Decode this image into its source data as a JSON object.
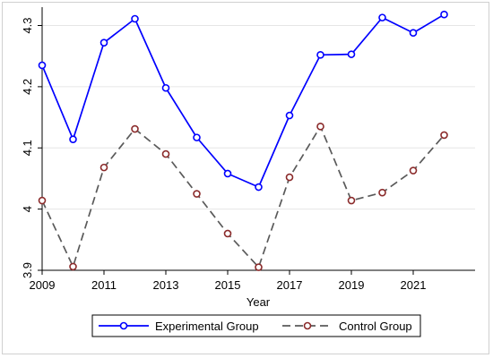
{
  "chart_data": {
    "type": "line",
    "title": "",
    "xlabel": "Year",
    "ylabel": "",
    "x": [
      2009,
      2010,
      2011,
      2012,
      2013,
      2014,
      2015,
      2016,
      2017,
      2018,
      2019,
      2020,
      2021,
      2022
    ],
    "xticks": [
      2009,
      2011,
      2013,
      2015,
      2017,
      2019,
      2021
    ],
    "xtick_labels": [
      "2009",
      "2011",
      "2013",
      "2015",
      "2017",
      "2019",
      "2021"
    ],
    "xlim": [
      2009,
      2023
    ],
    "yticks": [
      3.9,
      4,
      4.1,
      4.2,
      4.3
    ],
    "ytick_labels": [
      "3.9",
      "4",
      "4.1",
      "4.2",
      "4.3"
    ],
    "ylim": [
      3.9,
      4.33
    ],
    "grid": "horizontal",
    "legend_position": "bottom",
    "series": [
      {
        "name": "Experimental Group",
        "color": "#0000ff",
        "line_style": "solid",
        "marker": "hollow-circle",
        "values": [
          4.235,
          4.114,
          4.272,
          4.311,
          4.198,
          4.117,
          4.058,
          4.036,
          4.153,
          4.252,
          4.253,
          4.313,
          4.288,
          4.318
        ]
      },
      {
        "name": "Control Group",
        "color": "#5a5a5a",
        "marker_color": "#8b2b2b",
        "line_style": "dashed",
        "marker": "hollow-circle",
        "values": [
          4.014,
          3.906,
          4.068,
          4.131,
          4.09,
          4.025,
          3.96,
          3.905,
          4.052,
          4.135,
          4.014,
          4.027,
          4.063,
          4.121
        ]
      }
    ]
  }
}
